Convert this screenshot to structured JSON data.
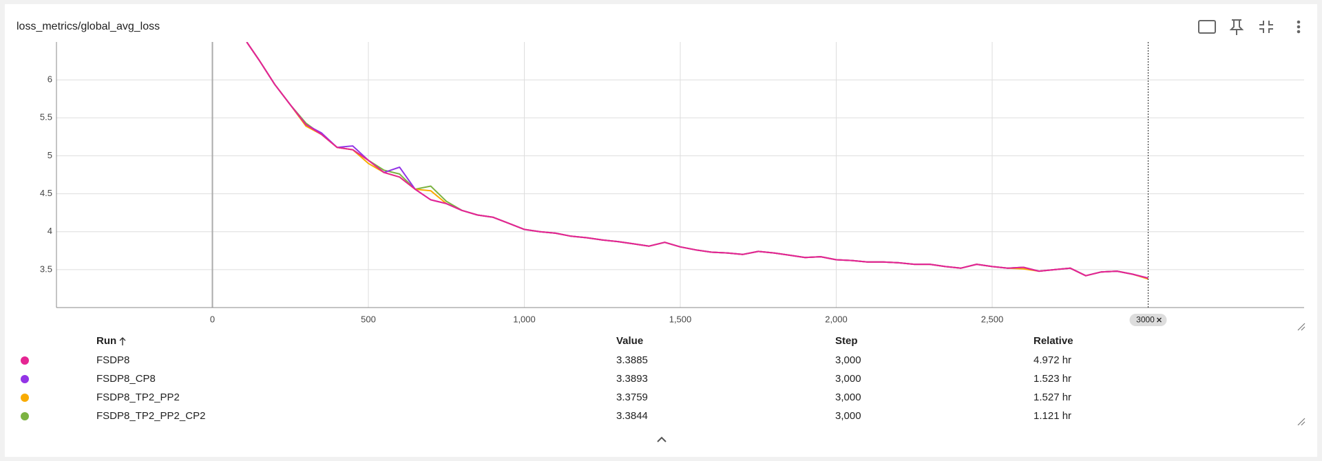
{
  "header": {
    "title": "loss_metrics/global_avg_loss"
  },
  "chart_data": {
    "type": "line",
    "x": [
      110,
      150,
      200,
      250,
      300,
      350,
      400,
      450,
      500,
      550,
      600,
      650,
      700,
      750,
      800,
      850,
      900,
      950,
      1000,
      1050,
      1100,
      1150,
      1200,
      1250,
      1300,
      1350,
      1400,
      1450,
      1500,
      1550,
      1600,
      1650,
      1700,
      1750,
      1800,
      1850,
      1900,
      1950,
      2000,
      2050,
      2100,
      2150,
      2200,
      2250,
      2300,
      2350,
      2400,
      2450,
      2500,
      2550,
      2600,
      2650,
      2700,
      2750,
      2800,
      2850,
      2900,
      2950,
      3000
    ],
    "series": [
      {
        "name": "FSDP8_TP2_PP2_CP2",
        "color": "#7cb342",
        "values": [
          6.5,
          6.26,
          5.94,
          5.67,
          5.43,
          5.28,
          5.11,
          5.08,
          4.94,
          4.81,
          4.76,
          4.56,
          4.6,
          4.4,
          4.28,
          4.22,
          4.19,
          4.11,
          4.03,
          4.0,
          3.98,
          3.94,
          3.92,
          3.89,
          3.87,
          3.84,
          3.81,
          3.86,
          3.8,
          3.76,
          3.73,
          3.72,
          3.7,
          3.74,
          3.72,
          3.69,
          3.66,
          3.67,
          3.63,
          3.62,
          3.6,
          3.6,
          3.59,
          3.57,
          3.57,
          3.54,
          3.52,
          3.57,
          3.54,
          3.52,
          3.53,
          3.48,
          3.5,
          3.52,
          3.42,
          3.47,
          3.48,
          3.44,
          3.3844
        ]
      },
      {
        "name": "FSDP8_TP2_PP2",
        "color": "#f9ab00",
        "values": [
          6.5,
          6.26,
          5.94,
          5.67,
          5.39,
          5.28,
          5.11,
          5.08,
          4.9,
          4.78,
          4.72,
          4.56,
          4.54,
          4.37,
          4.28,
          4.22,
          4.19,
          4.11,
          4.03,
          4.0,
          3.98,
          3.94,
          3.92,
          3.89,
          3.87,
          3.84,
          3.81,
          3.86,
          3.8,
          3.76,
          3.73,
          3.72,
          3.7,
          3.74,
          3.72,
          3.69,
          3.66,
          3.67,
          3.63,
          3.62,
          3.6,
          3.6,
          3.59,
          3.57,
          3.57,
          3.54,
          3.52,
          3.57,
          3.54,
          3.52,
          3.51,
          3.48,
          3.5,
          3.52,
          3.42,
          3.47,
          3.48,
          3.44,
          3.3759
        ]
      },
      {
        "name": "FSDP8_CP8",
        "color": "#9334e6",
        "values": [
          6.5,
          6.26,
          5.94,
          5.67,
          5.41,
          5.3,
          5.11,
          5.13,
          4.94,
          4.78,
          4.85,
          4.56,
          4.42,
          4.37,
          4.28,
          4.22,
          4.19,
          4.11,
          4.03,
          4.0,
          3.98,
          3.94,
          3.92,
          3.89,
          3.87,
          3.84,
          3.81,
          3.86,
          3.8,
          3.76,
          3.73,
          3.72,
          3.7,
          3.74,
          3.72,
          3.69,
          3.66,
          3.67,
          3.63,
          3.62,
          3.6,
          3.6,
          3.59,
          3.57,
          3.57,
          3.54,
          3.52,
          3.57,
          3.54,
          3.52,
          3.53,
          3.48,
          3.5,
          3.52,
          3.42,
          3.47,
          3.48,
          3.44,
          3.3893
        ]
      },
      {
        "name": "FSDP8",
        "color": "#e52592",
        "values": [
          6.5,
          6.26,
          5.94,
          5.67,
          5.41,
          5.28,
          5.11,
          5.08,
          4.94,
          4.78,
          4.72,
          4.56,
          4.42,
          4.37,
          4.28,
          4.22,
          4.19,
          4.11,
          4.03,
          4.0,
          3.98,
          3.94,
          3.92,
          3.89,
          3.87,
          3.84,
          3.81,
          3.86,
          3.8,
          3.76,
          3.73,
          3.72,
          3.7,
          3.74,
          3.72,
          3.69,
          3.66,
          3.67,
          3.63,
          3.62,
          3.6,
          3.6,
          3.59,
          3.57,
          3.57,
          3.54,
          3.52,
          3.57,
          3.54,
          3.52,
          3.53,
          3.48,
          3.5,
          3.52,
          3.42,
          3.47,
          3.48,
          3.44,
          3.3885
        ]
      }
    ],
    "xlim": [
      -500,
      3500
    ],
    "ylim": [
      3,
      6.5
    ],
    "xticks": [
      0,
      500,
      {
        "value": 1000,
        "label": "1,000"
      },
      {
        "value": 1500,
        "label": "1,500"
      },
      {
        "value": 2000,
        "label": "2,000"
      },
      {
        "value": 2500,
        "label": "2,500"
      }
    ],
    "yticks": [
      3.5,
      4,
      4.5,
      5,
      5.5,
      6
    ],
    "grid": true,
    "cursor_step": 3000
  },
  "table": {
    "columns": [
      "Run",
      "Value",
      "Step",
      "Relative"
    ],
    "rows": [
      [
        "FSDP8",
        "3.3885",
        "3,000",
        "4.972 hr"
      ],
      [
        "FSDP8_CP8",
        "3.3893",
        "3,000",
        "1.523 hr"
      ],
      [
        "FSDP8_TP2_PP2",
        "3.3759",
        "3,000",
        "1.527 hr"
      ],
      [
        "FSDP8_TP2_PP2_CP2",
        "3.3844",
        "3,000",
        "1.121 hr"
      ]
    ]
  }
}
